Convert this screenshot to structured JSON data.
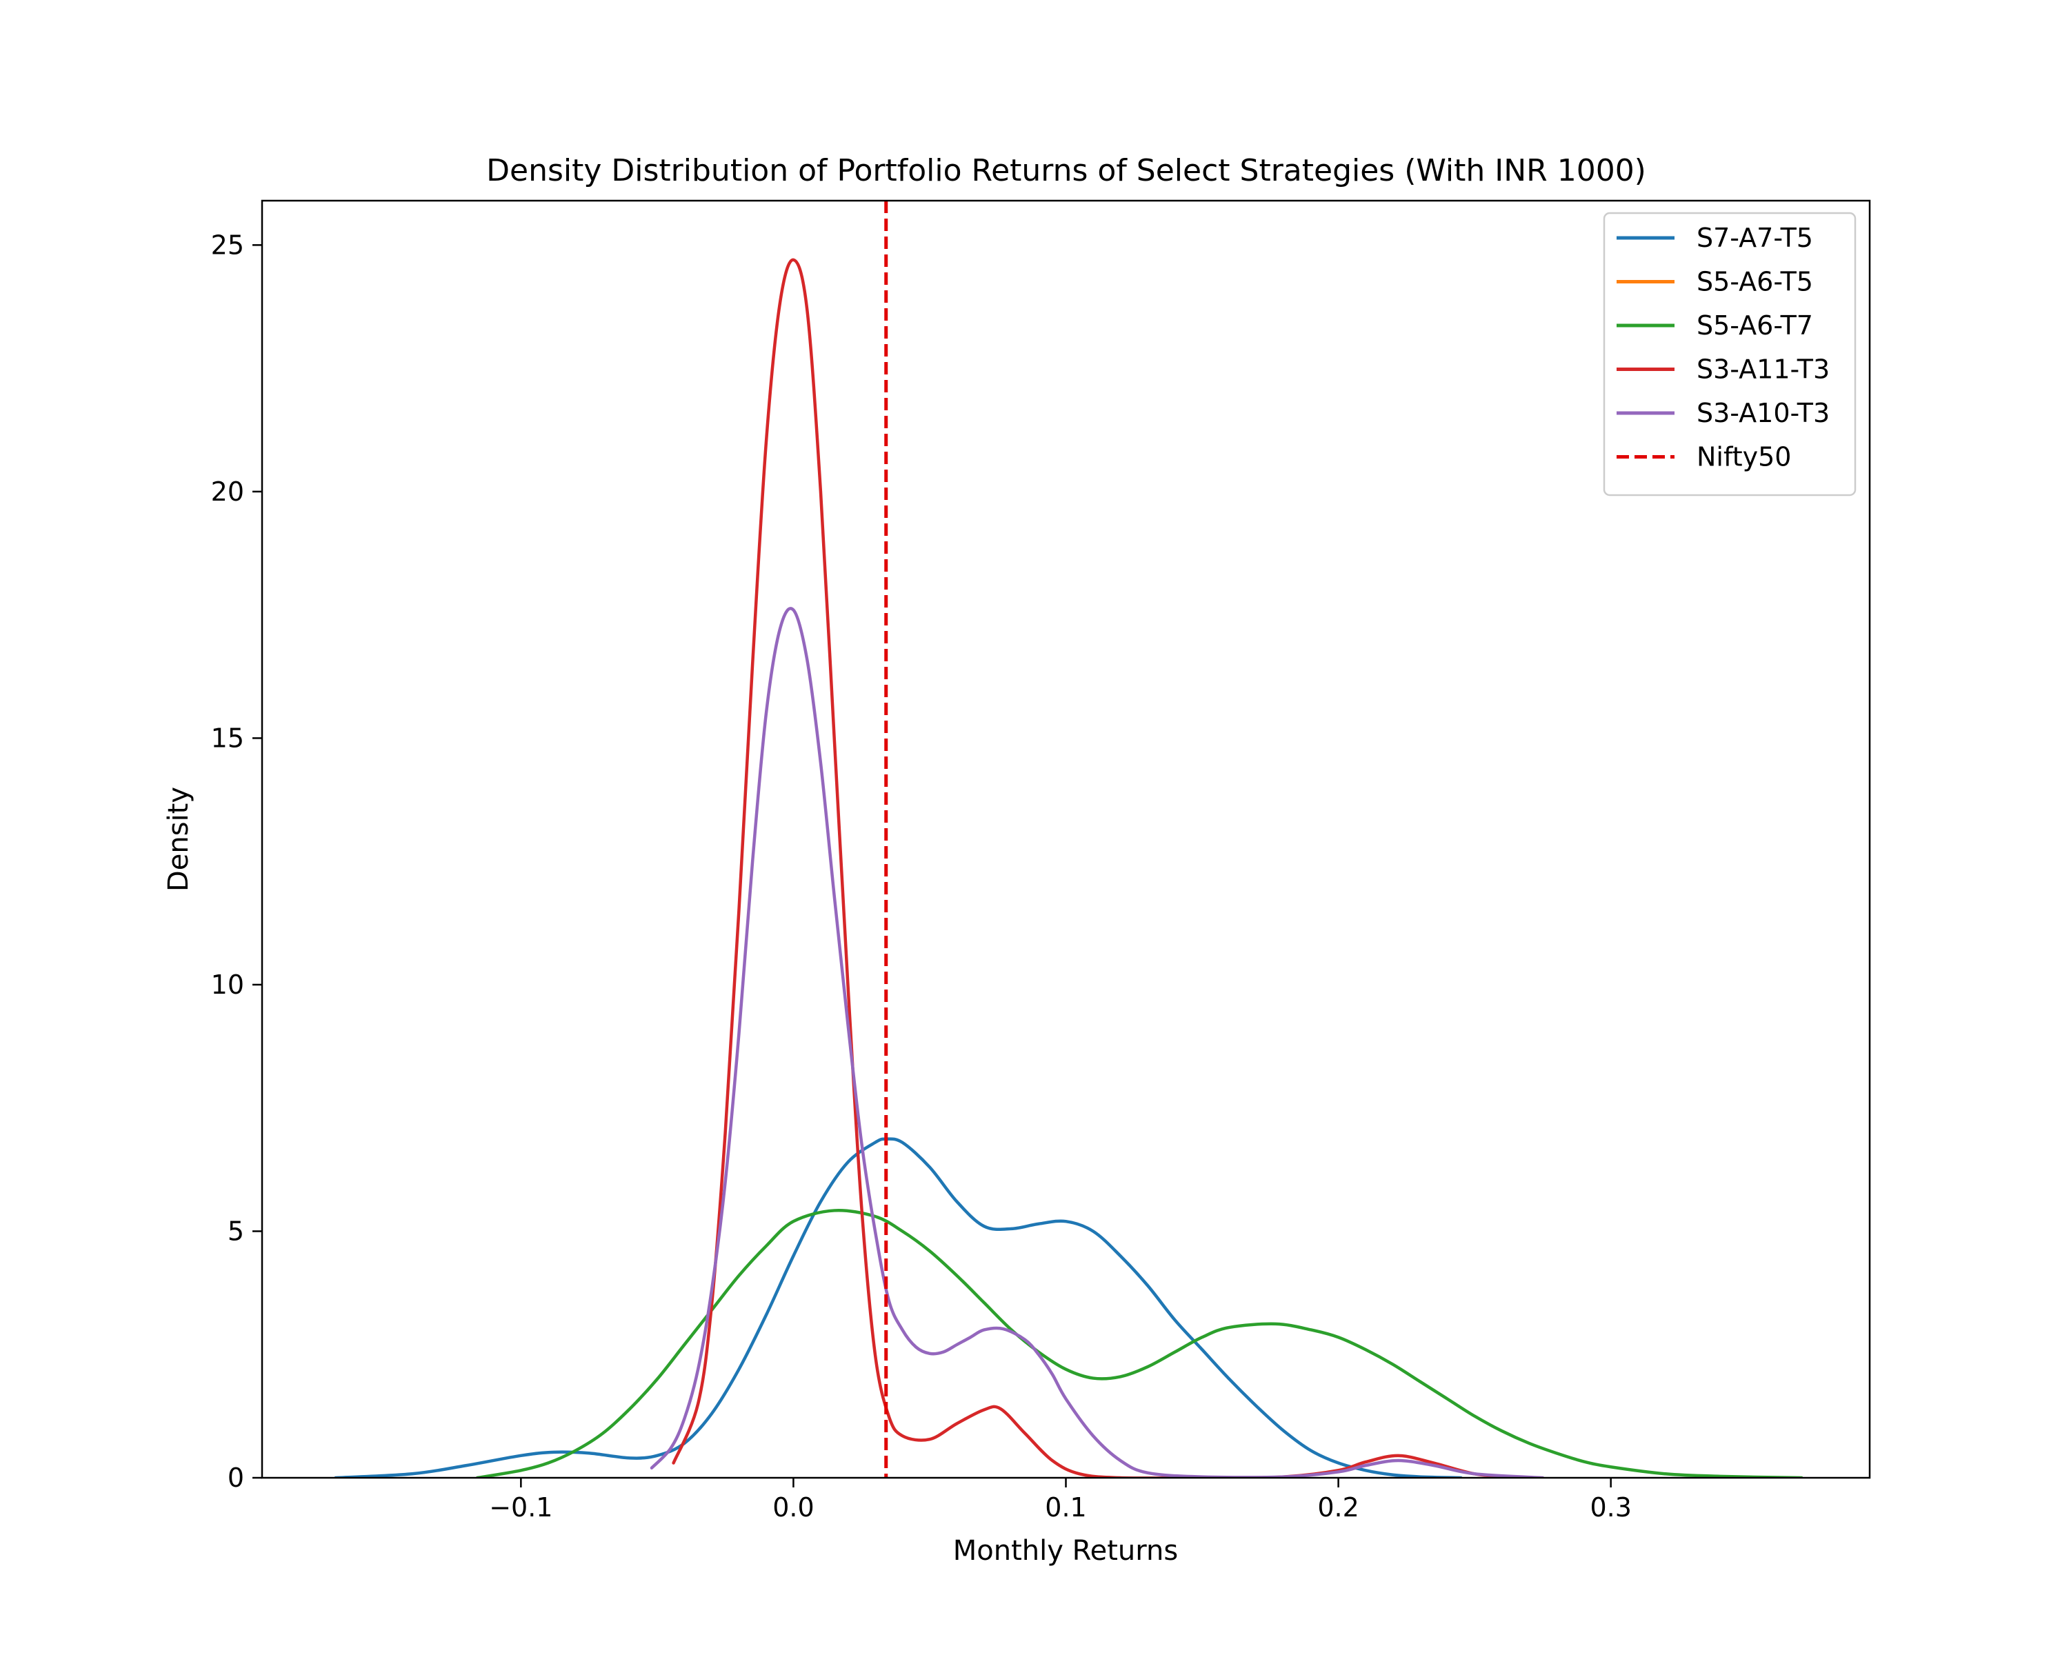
{
  "chart_data": {
    "type": "line",
    "title": "Density Distribution of Portfolio Returns of Select Strategies (With INR 1000)",
    "xlabel": "Monthly Returns",
    "ylabel": "Density",
    "xlim": [
      -0.195,
      0.395
    ],
    "ylim": [
      0,
      25.9
    ],
    "x_ticks": [
      -0.1,
      0.0,
      0.1,
      0.2,
      0.3
    ],
    "x_tick_labels": [
      "−0.1",
      "0.0",
      "0.1",
      "0.2",
      "0.3"
    ],
    "y_ticks": [
      0,
      5,
      10,
      15,
      20,
      25
    ],
    "y_tick_labels": [
      "0",
      "5",
      "10",
      "15",
      "20",
      "25"
    ],
    "grid": false,
    "legend_position": "top-right",
    "series": [
      {
        "name": "S7-A7-T5",
        "color": "#1f77b4",
        "style": "solid",
        "x": [
          -0.168,
          -0.14,
          -0.12,
          -0.1,
          -0.088,
          -0.075,
          -0.06,
          -0.05,
          -0.04,
          -0.03,
          -0.02,
          -0.01,
          0.0,
          0.01,
          0.02,
          0.03,
          0.034,
          0.04,
          0.05,
          0.06,
          0.07,
          0.08,
          0.09,
          0.1,
          0.11,
          0.12,
          0.13,
          0.14,
          0.15,
          0.16,
          0.17,
          0.18,
          0.19,
          0.2,
          0.21,
          0.22,
          0.23,
          0.245
        ],
        "y": [
          0.0,
          0.08,
          0.25,
          0.45,
          0.52,
          0.5,
          0.4,
          0.45,
          0.7,
          1.3,
          2.2,
          3.3,
          4.5,
          5.6,
          6.4,
          6.8,
          6.87,
          6.8,
          6.3,
          5.6,
          5.1,
          5.05,
          5.15,
          5.2,
          5.0,
          4.5,
          3.9,
          3.2,
          2.6,
          2.0,
          1.45,
          0.95,
          0.55,
          0.3,
          0.15,
          0.06,
          0.02,
          0.0
        ]
      },
      {
        "name": "S5-A6-T5",
        "color": "#ff7f0e",
        "style": "solid",
        "x": [],
        "y": []
      },
      {
        "name": "S5-A6-T7",
        "color": "#2ca02c",
        "style": "solid",
        "x": [
          -0.116,
          -0.1,
          -0.09,
          -0.08,
          -0.07,
          -0.06,
          -0.05,
          -0.04,
          -0.03,
          -0.02,
          -0.01,
          0.0,
          0.015,
          0.03,
          0.04,
          0.05,
          0.06,
          0.07,
          0.08,
          0.09,
          0.1,
          0.11,
          0.12,
          0.13,
          0.14,
          0.15,
          0.16,
          0.177,
          0.19,
          0.2,
          0.21,
          0.22,
          0.23,
          0.24,
          0.25,
          0.26,
          0.27,
          0.28,
          0.29,
          0.3,
          0.32,
          0.34,
          0.37
        ],
        "y": [
          0.0,
          0.15,
          0.3,
          0.55,
          0.9,
          1.4,
          2.0,
          2.7,
          3.4,
          4.1,
          4.7,
          5.2,
          5.42,
          5.3,
          5.0,
          4.6,
          4.1,
          3.55,
          3.0,
          2.55,
          2.2,
          2.02,
          2.05,
          2.25,
          2.55,
          2.85,
          3.05,
          3.12,
          3.0,
          2.85,
          2.6,
          2.3,
          1.95,
          1.6,
          1.25,
          0.95,
          0.7,
          0.5,
          0.33,
          0.22,
          0.08,
          0.03,
          0.0
        ]
      },
      {
        "name": "S3-A11-T3",
        "color": "#d62728",
        "style": "solid",
        "x": [
          -0.044,
          -0.035,
          -0.03,
          -0.025,
          -0.02,
          -0.015,
          -0.01,
          -0.005,
          0.0,
          0.005,
          0.01,
          0.015,
          0.02,
          0.025,
          0.03,
          0.035,
          0.04,
          0.05,
          0.06,
          0.07,
          0.076,
          0.085,
          0.095,
          0.105,
          0.12,
          0.15,
          0.18,
          0.2,
          0.21,
          0.222,
          0.235,
          0.25,
          0.265
        ],
        "y": [
          0.3,
          1.5,
          3.5,
          7.0,
          11.5,
          16.5,
          21.0,
          23.8,
          24.7,
          23.7,
          20.0,
          15.0,
          10.0,
          5.5,
          2.5,
          1.25,
          0.85,
          0.78,
          1.1,
          1.38,
          1.4,
          0.9,
          0.35,
          0.08,
          0.0,
          0.0,
          0.02,
          0.15,
          0.32,
          0.45,
          0.3,
          0.08,
          0.0
        ]
      },
      {
        "name": "S3-A10-T3",
        "color": "#9467bd",
        "style": "solid",
        "x": [
          -0.052,
          -0.045,
          -0.04,
          -0.035,
          -0.03,
          -0.025,
          -0.02,
          -0.015,
          -0.01,
          -0.005,
          0.0,
          0.005,
          0.01,
          0.015,
          0.02,
          0.025,
          0.03,
          0.035,
          0.04,
          0.045,
          0.05,
          0.055,
          0.06,
          0.065,
          0.07,
          0.077,
          0.085,
          0.09,
          0.095,
          0.1,
          0.11,
          0.12,
          0.13,
          0.15,
          0.18,
          0.2,
          0.21,
          0.222,
          0.235,
          0.25,
          0.275
        ],
        "y": [
          0.2,
          0.6,
          1.2,
          2.2,
          3.8,
          6.0,
          9.0,
          12.5,
          15.5,
          17.2,
          17.6,
          16.6,
          14.5,
          11.8,
          9.2,
          6.8,
          5.0,
          3.6,
          3.0,
          2.65,
          2.52,
          2.55,
          2.7,
          2.85,
          3.0,
          3.02,
          2.8,
          2.5,
          2.1,
          1.6,
          0.85,
          0.35,
          0.1,
          0.02,
          0.02,
          0.12,
          0.25,
          0.35,
          0.25,
          0.08,
          0.0
        ]
      },
      {
        "name": "Nifty50",
        "color": "#e00000",
        "style": "dashed",
        "vline_x": 0.034
      }
    ]
  }
}
